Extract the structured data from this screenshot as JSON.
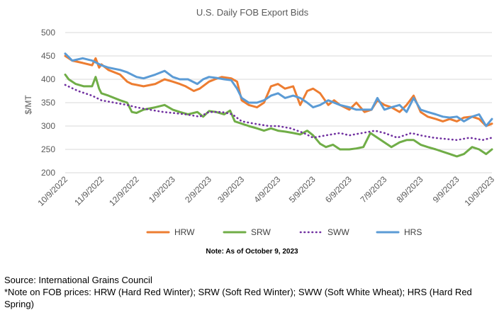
{
  "chart_data": {
    "type": "line",
    "title": "U.S. Daily FOB Export Bids",
    "ylabel": "$/MT",
    "xlabel": "",
    "ylim": [
      200,
      500
    ],
    "yticks": [
      200,
      250,
      300,
      350,
      400,
      450,
      500
    ],
    "x_ticks": [
      "10/9/2022",
      "11/9/2022",
      "12/9/2022",
      "1/9/2023",
      "2/9/2023",
      "3/9/2023",
      "4/9/2023",
      "5/9/2023",
      "6/9/2023",
      "7/9/2023",
      "8/9/2023",
      "9/9/2023",
      "10/9/2023"
    ],
    "grid": "horizontal",
    "legend": "bottom",
    "series": [
      {
        "name": "HRW",
        "color": "#ED7D31",
        "style": "solid",
        "x": [
          "10/9/2022",
          "10/15/2022",
          "10/24/2022",
          "11/1/2022",
          "11/4/2022",
          "11/7/2022",
          "11/9/2022",
          "11/15/2022",
          "11/25/2022",
          "12/1/2022",
          "12/5/2022",
          "12/9/2022",
          "12/15/2022",
          "12/25/2022",
          "1/2/2023",
          "1/9/2023",
          "1/15/2023",
          "1/20/2023",
          "1/27/2023",
          "2/1/2023",
          "2/9/2023",
          "2/14/2023",
          "2/20/2023",
          "2/28/2023",
          "3/5/2023",
          "3/9/2023",
          "3/15/2023",
          "3/22/2023",
          "3/28/2023",
          "4/3/2023",
          "4/9/2023",
          "4/15/2023",
          "4/22/2023",
          "4/28/2023",
          "5/4/2023",
          "5/9/2023",
          "5/15/2023",
          "5/22/2023",
          "5/27/2023",
          "6/1/2023",
          "6/9/2023",
          "6/15/2023",
          "6/22/2023",
          "6/28/2023",
          "7/3/2023",
          "7/9/2023",
          "7/15/2023",
          "7/22/2023",
          "7/28/2023",
          "8/3/2023",
          "8/9/2023",
          "8/15/2023",
          "8/22/2023",
          "8/28/2023",
          "9/3/2023",
          "9/9/2023",
          "9/15/2023",
          "9/22/2023",
          "9/28/2023",
          "10/4/2023",
          "10/9/2023"
        ],
        "values": [
          450,
          440,
          435,
          430,
          445,
          425,
          432,
          420,
          410,
          395,
          390,
          388,
          385,
          390,
          400,
          395,
          390,
          385,
          375,
          380,
          395,
          400,
          405,
          402,
          395,
          355,
          345,
          340,
          350,
          385,
          390,
          380,
          385,
          345,
          375,
          380,
          370,
          345,
          355,
          345,
          335,
          350,
          330,
          335,
          355,
          345,
          340,
          330,
          345,
          365,
          330,
          320,
          315,
          310,
          315,
          310,
          318,
          320,
          315,
          300,
          305
        ]
      },
      {
        "name": "SRW",
        "color": "#70AD47",
        "style": "solid",
        "x": [
          "10/9/2022",
          "10/12/2022",
          "10/18/2022",
          "10/25/2022",
          "11/1/2022",
          "11/4/2022",
          "11/7/2022",
          "11/9/2022",
          "11/15/2022",
          "11/25/2022",
          "12/1/2022",
          "12/5/2022",
          "12/9/2022",
          "12/15/2022",
          "12/25/2022",
          "1/2/2023",
          "1/9/2023",
          "1/15/2023",
          "1/22/2023",
          "1/30/2023",
          "2/4/2023",
          "2/9/2023",
          "2/15/2023",
          "2/22/2023",
          "2/27/2023",
          "3/3/2023",
          "3/9/2023",
          "3/15/2023",
          "3/22/2023",
          "3/28/2023",
          "4/3/2023",
          "4/9/2023",
          "4/15/2023",
          "4/22/2023",
          "4/28/2023",
          "5/4/2023",
          "5/9/2023",
          "5/15/2023",
          "5/20/2023",
          "5/26/2023",
          "6/1/2023",
          "6/9/2023",
          "6/15/2023",
          "6/21/2023",
          "6/27/2023",
          "7/3/2023",
          "7/9/2023",
          "7/15/2023",
          "7/22/2023",
          "7/28/2023",
          "8/3/2023",
          "8/9/2023",
          "8/15/2023",
          "8/22/2023",
          "8/28/2023",
          "9/3/2023",
          "9/9/2023",
          "9/15/2023",
          "9/22/2023",
          "9/28/2023",
          "10/4/2023",
          "10/9/2023"
        ],
        "values": [
          410,
          400,
          390,
          385,
          385,
          405,
          380,
          370,
          365,
          355,
          350,
          330,
          328,
          335,
          340,
          345,
          335,
          330,
          325,
          330,
          320,
          332,
          330,
          325,
          333,
          310,
          305,
          300,
          295,
          290,
          295,
          290,
          288,
          285,
          282,
          290,
          280,
          262,
          255,
          260,
          250,
          250,
          252,
          255,
          285,
          275,
          265,
          255,
          265,
          270,
          270,
          260,
          255,
          250,
          245,
          240,
          235,
          240,
          255,
          250,
          240,
          250
        ]
      },
      {
        "name": "SWW",
        "color": "#7030A0",
        "style": "dotted",
        "x": [
          "10/9/2022",
          "10/20/2022",
          "11/1/2022",
          "11/9/2022",
          "11/20/2022",
          "12/1/2022",
          "12/9/2022",
          "12/20/2022",
          "1/1/2023",
          "1/9/2023",
          "1/20/2023",
          "2/1/2023",
          "2/9/2023",
          "2/20/2023",
          "3/1/2023",
          "3/9/2023",
          "3/20/2023",
          "4/1/2023",
          "4/9/2023",
          "4/20/2023",
          "5/1/2023",
          "5/9/2023",
          "5/20/2023",
          "6/1/2023",
          "6/9/2023",
          "6/20/2023",
          "7/1/2023",
          "7/9/2023",
          "7/20/2023",
          "8/1/2023",
          "8/9/2023",
          "8/20/2023",
          "9/1/2023",
          "9/9/2023",
          "9/20/2023",
          "10/1/2023",
          "10/9/2023"
        ],
        "values": [
          388,
          375,
          365,
          355,
          350,
          345,
          340,
          335,
          330,
          328,
          325,
          320,
          330,
          330,
          325,
          310,
          305,
          300,
          300,
          295,
          285,
          275,
          280,
          285,
          280,
          285,
          290,
          285,
          275,
          285,
          280,
          275,
          272,
          270,
          275,
          270,
          275
        ]
      },
      {
        "name": "HRS",
        "color": "#5B9BD5",
        "style": "solid",
        "x": [
          "10/9/2022",
          "10/15/2022",
          "10/24/2022",
          "11/1/2022",
          "11/9/2022",
          "11/15/2022",
          "11/25/2022",
          "12/1/2022",
          "12/9/2022",
          "12/15/2022",
          "12/25/2022",
          "1/2/2023",
          "1/9/2023",
          "1/15/2023",
          "1/22/2023",
          "1/30/2023",
          "2/4/2023",
          "2/9/2023",
          "2/15/2023",
          "2/22/2023",
          "2/28/2023",
          "3/5/2023",
          "3/9/2023",
          "3/15/2023",
          "3/22/2023",
          "3/28/2023",
          "4/3/2023",
          "4/9/2023",
          "4/15/2023",
          "4/22/2023",
          "4/28/2023",
          "5/4/2023",
          "5/9/2023",
          "5/15/2023",
          "5/22/2023",
          "5/27/2023",
          "6/1/2023",
          "6/9/2023",
          "6/15/2023",
          "6/22/2023",
          "6/28/2023",
          "7/3/2023",
          "7/9/2023",
          "7/15/2023",
          "7/22/2023",
          "7/28/2023",
          "8/3/2023",
          "8/9/2023",
          "8/15/2023",
          "8/22/2023",
          "8/28/2023",
          "9/3/2023",
          "9/9/2023",
          "9/15/2023",
          "9/22/2023",
          "9/28/2023",
          "10/4/2023",
          "10/9/2023"
        ],
        "values": [
          455,
          440,
          445,
          440,
          430,
          425,
          420,
          415,
          405,
          402,
          410,
          418,
          405,
          400,
          400,
          390,
          400,
          405,
          403,
          400,
          398,
          380,
          360,
          350,
          350,
          355,
          365,
          370,
          360,
          365,
          360,
          350,
          340,
          345,
          355,
          350,
          345,
          340,
          335,
          335,
          335,
          360,
          335,
          340,
          345,
          330,
          360,
          335,
          330,
          325,
          320,
          318,
          320,
          310,
          320,
          325,
          300,
          315
        ]
      }
    ]
  },
  "note": "Note: As of October 9, 2023",
  "source": "Source: International Grains Council",
  "footnote": "*Note on FOB prices: HRW (Hard Red Winter); SRW (Soft Red Winter); SWW (Soft White Wheat); HRS (Hard Red Spring)"
}
